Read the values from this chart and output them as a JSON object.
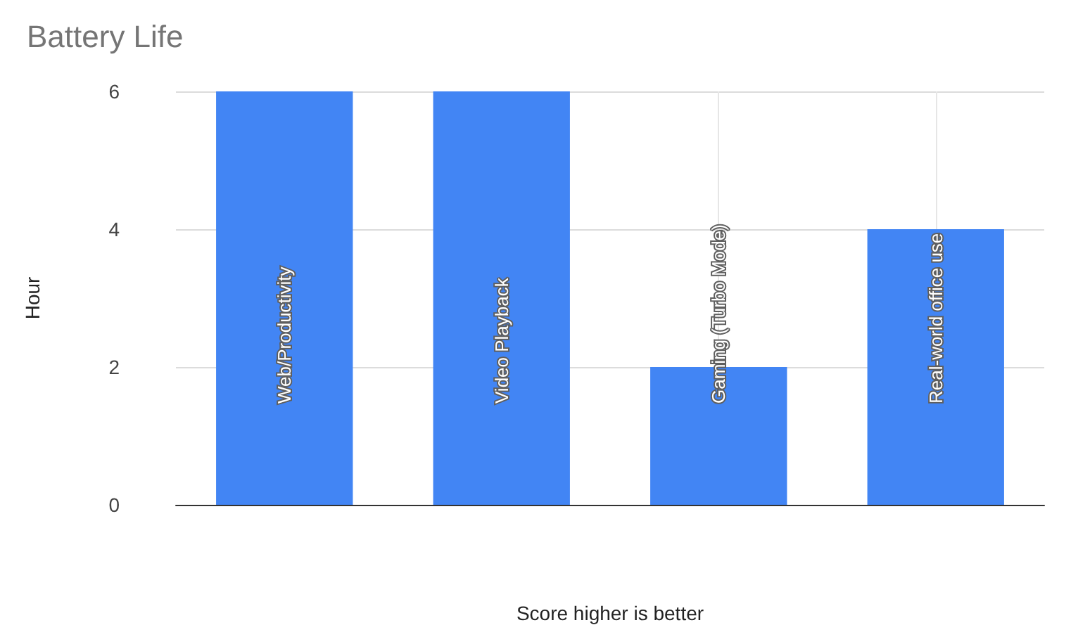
{
  "chart_data": {
    "type": "bar",
    "title": "Battery Life",
    "xlabel": "Score higher is better",
    "ylabel": "Hour",
    "categories": [
      "Web/Productivity",
      "Video Playback",
      "Gaming (Turbo Mode)",
      "Real-world office use"
    ],
    "values": [
      6,
      6,
      2,
      4
    ],
    "color": "#4285f4",
    "ylim": [
      0,
      6
    ],
    "yticks": [
      0,
      2,
      4,
      6
    ],
    "grid": true
  }
}
